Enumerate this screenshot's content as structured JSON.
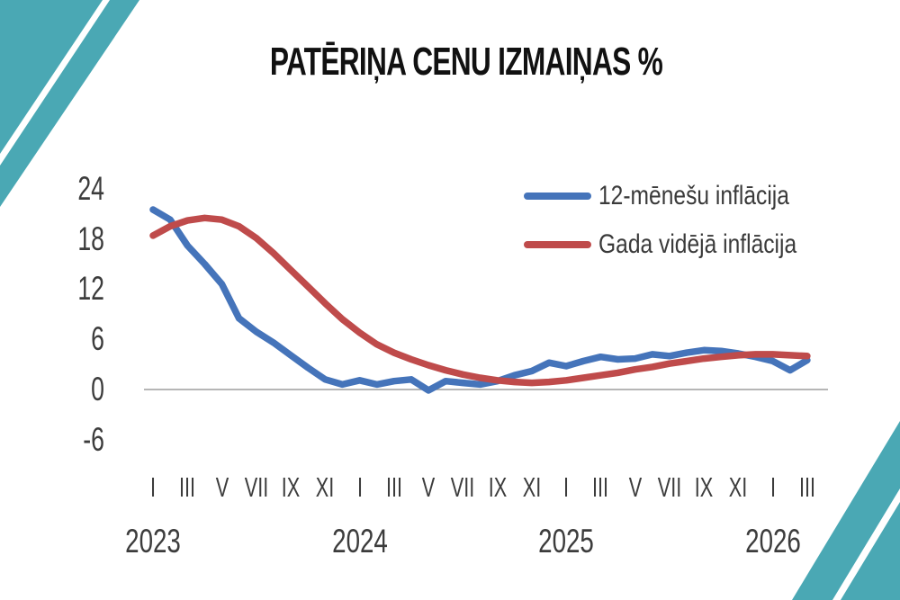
{
  "slide": {
    "accent_teal": "#4aa8b4",
    "background": "#ffffff"
  },
  "chart_data": {
    "type": "line",
    "title": "PATĒRIŅA CENU IZMAIŅAS %",
    "x_unit": "month",
    "x_start": "2023-01",
    "x_end": "2026-03",
    "grid": false,
    "legend_position": "top-right",
    "y_ticks": [
      24,
      18,
      12,
      6,
      0,
      -6
    ],
    "ylim": [
      -8,
      26
    ],
    "axis_line_color": "#9e9e9e",
    "text_color": "#3c3c3c",
    "x_axis_years": [
      {
        "label": "2023",
        "month_ticks": [
          "I",
          "III",
          "V",
          "VII",
          "IX",
          "XI"
        ]
      },
      {
        "label": "2024",
        "month_ticks": [
          "I",
          "III",
          "V",
          "VII",
          "IX",
          "XI"
        ]
      },
      {
        "label": "2025",
        "month_ticks": [
          "I",
          "III",
          "V",
          "VII",
          "IX",
          "XI"
        ]
      },
      {
        "label": "2026",
        "month_ticks": [
          "I",
          "III"
        ]
      }
    ],
    "series": [
      {
        "name": "12-mēnešu inflācija",
        "color": "#4574ba",
        "values": [
          21.5,
          20.3,
          17.2,
          15.0,
          12.6,
          8.5,
          6.9,
          5.6,
          4.1,
          2.6,
          1.2,
          0.6,
          1.1,
          0.6,
          1.0,
          1.2,
          -0.1,
          1.0,
          0.8,
          0.6,
          1.0,
          1.7,
          2.2,
          3.2,
          2.8,
          3.4,
          3.9,
          3.6,
          3.7,
          4.2,
          4.0,
          4.4,
          4.7,
          4.6,
          4.3,
          3.9,
          3.4,
          2.3,
          3.5
        ]
      },
      {
        "name": "Gada vidējā inflācija",
        "color": "#bf4b4b",
        "values": [
          18.4,
          19.5,
          20.2,
          20.5,
          20.3,
          19.5,
          18.1,
          16.3,
          14.3,
          12.3,
          10.3,
          8.4,
          6.8,
          5.4,
          4.4,
          3.6,
          2.9,
          2.3,
          1.8,
          1.4,
          1.1,
          0.9,
          0.8,
          0.9,
          1.1,
          1.4,
          1.7,
          2.0,
          2.4,
          2.7,
          3.1,
          3.4,
          3.7,
          3.9,
          4.1,
          4.2,
          4.2,
          4.1,
          4.0
        ]
      }
    ]
  }
}
